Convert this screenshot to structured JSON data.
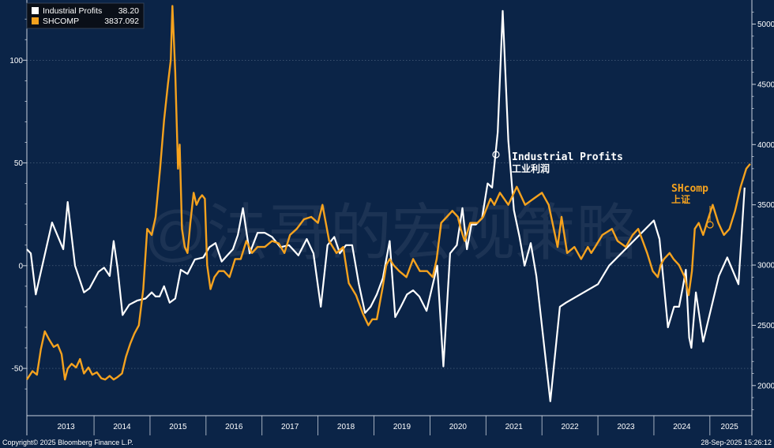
{
  "colors": {
    "background": "#0b2447",
    "industrial": "#ffffff",
    "shcomp": "#f5a21e",
    "axis": "#c9d1dc",
    "legend_bg": "#0a0f18",
    "footer_text": "#ffffff"
  },
  "legend": {
    "items": [
      {
        "name": "Industrial Profits",
        "value": "38.20",
        "color": "#ffffff"
      },
      {
        "name": "SHCOMP",
        "value": "3837.092",
        "color": "#f5a21e"
      }
    ]
  },
  "annotations": {
    "industrial_label": "Industrial Profits",
    "industrial_label_cn": "工业利润",
    "shcomp_label": "SHcomp",
    "shcomp_label_cn": "上证"
  },
  "watermark": "@法哥的宏观策略",
  "footer": {
    "copyright": "Copyright© 2025 Bloomberg Finance L.P.",
    "timestamp": "28-Sep-2025 15:26:12"
  },
  "chart_data": {
    "type": "line",
    "x_range": [
      2012.8,
      2025.75
    ],
    "x_ticks": [
      "2013",
      "2014",
      "2015",
      "2016",
      "2017",
      "2018",
      "2019",
      "2020",
      "2021",
      "2022",
      "2023",
      "2024",
      "2025"
    ],
    "left_axis": {
      "ticks": [
        -50,
        0,
        50,
        100
      ],
      "range": [
        -73,
        129.3
      ]
    },
    "right_axis": {
      "ticks": [
        2000,
        2500,
        3000,
        3500,
        4000,
        4500,
        5000
      ],
      "range": [
        1750,
        5200
      ]
    },
    "series": [
      {
        "name": "Industrial Profits",
        "axis": "left",
        "last_value": 38.2,
        "x": [
          2012.8,
          2012.87,
          2012.96,
          2013.25,
          2013.45,
          2013.53,
          2013.66,
          2013.82,
          2013.92,
          2014.08,
          2014.18,
          2014.28,
          2014.35,
          2014.42,
          2014.51,
          2014.63,
          2014.77,
          2014.92,
          2015.03,
          2015.1,
          2015.17,
          2015.25,
          2015.35,
          2015.45,
          2015.55,
          2015.67,
          2015.8,
          2015.95,
          2016.06,
          2016.17,
          2016.28,
          2016.38,
          2016.48,
          2016.57,
          2016.66,
          2016.78,
          2016.92,
          2017.05,
          2017.18,
          2017.33,
          2017.48,
          2017.55,
          2017.65,
          2017.8,
          2017.92,
          2018.05,
          2018.17,
          2018.29,
          2018.39,
          2018.5,
          2018.61,
          2018.73,
          2018.84,
          2018.94,
          2019.05,
          2019.16,
          2019.28,
          2019.38,
          2019.48,
          2019.59,
          2019.7,
          2019.81,
          2019.94,
          2020.13,
          2020.24,
          2020.36,
          2020.48,
          2020.58,
          2020.66,
          2020.74,
          2020.82,
          2020.93,
          2021.03,
          2021.11,
          2021.21,
          2021.3,
          2021.4,
          2021.5,
          2021.6,
          2021.69,
          2021.8,
          2021.9,
          2022.15,
          2022.32,
          2022.43,
          2023.0,
          2023.2,
          2024.0,
          2024.1,
          2024.25,
          2024.36,
          2024.45,
          2024.52,
          2024.57,
          2024.63,
          2024.67,
          2024.75,
          2024.88,
          2025.16,
          2025.31,
          2025.51,
          2025.62
        ],
        "y": [
          8,
          6,
          -14,
          21,
          8,
          31,
          0,
          -13,
          -11,
          -3,
          -1,
          -5,
          12,
          -1,
          -24,
          -19,
          -17,
          -16,
          -13,
          -15,
          -15,
          -10,
          -18,
          -16,
          -2,
          -4,
          3,
          4,
          9,
          11,
          2,
          5,
          8,
          15,
          28,
          6,
          16,
          16,
          14,
          9,
          10,
          8,
          5,
          13,
          6,
          -20,
          10,
          14,
          6,
          10,
          10,
          -9,
          -23,
          -20,
          -14,
          -6,
          12,
          -25,
          -20,
          -14,
          -12,
          -15,
          -22,
          0,
          -49,
          6,
          10,
          28,
          8,
          20,
          20,
          23,
          40,
          38,
          65,
          124,
          61,
          27,
          14,
          0,
          11,
          -5,
          -66,
          -20,
          -18,
          -9,
          0,
          22,
          13,
          -30,
          -20,
          -20,
          -10,
          -2,
          -35,
          -40,
          -13,
          -37,
          -5,
          4,
          -9,
          38
        ]
      },
      {
        "name": "SHCOMP",
        "axis": "right",
        "last_value": 3837.092,
        "x": [
          2012.8,
          2012.9,
          2012.98,
          2013.05,
          2013.12,
          2013.2,
          2013.28,
          2013.35,
          2013.42,
          2013.48,
          2013.53,
          2013.6,
          2013.68,
          2013.75,
          2013.82,
          2013.9,
          2013.97,
          2014.05,
          2014.13,
          2014.2,
          2014.28,
          2014.35,
          2014.42,
          2014.5,
          2014.57,
          2014.65,
          2014.72,
          2014.8,
          2014.88,
          2014.95,
          2015.03,
          2015.1,
          2015.18,
          2015.25,
          2015.32,
          2015.37,
          2015.4,
          2015.45,
          2015.5,
          2015.53,
          2015.57,
          2015.62,
          2015.67,
          2015.72,
          2015.78,
          2015.83,
          2015.88,
          2015.93,
          2015.98,
          2016.02,
          2016.08,
          2016.15,
          2016.23,
          2016.32,
          2016.42,
          2016.52,
          2016.62,
          2016.72,
          2016.82,
          2016.92,
          2017.05,
          2017.18,
          2017.3,
          2017.4,
          2017.5,
          2017.62,
          2017.75,
          2017.88,
          2018.0,
          2018.08,
          2018.2,
          2018.33,
          2018.45,
          2018.55,
          2018.68,
          2018.8,
          2018.9,
          2018.97,
          2019.05,
          2019.15,
          2019.22,
          2019.28,
          2019.35,
          2019.45,
          2019.58,
          2019.7,
          2019.82,
          2019.95,
          2020.05,
          2020.12,
          2020.2,
          2020.3,
          2020.4,
          2020.5,
          2020.55,
          2020.62,
          2020.72,
          2020.85,
          2020.95,
          2021.08,
          2021.15,
          2021.25,
          2021.4,
          2021.55,
          2021.7,
          2021.85,
          2022.0,
          2022.12,
          2022.28,
          2022.35,
          2022.45,
          2022.58,
          2022.7,
          2022.82,
          2022.88,
          2022.95,
          2023.08,
          2023.25,
          2023.35,
          2023.5,
          2023.62,
          2023.72,
          2023.8,
          2023.88,
          2023.98,
          2024.07,
          2024.12,
          2024.18,
          2024.28,
          2024.35,
          2024.45,
          2024.55,
          2024.62,
          2024.68,
          2024.73,
          2024.8,
          2024.88,
          2024.98,
          2025.05,
          2025.15,
          2025.25,
          2025.35,
          2025.45,
          2025.55,
          2025.65,
          2025.72
        ],
        "y": [
          2050,
          2120,
          2090,
          2300,
          2450,
          2380,
          2320,
          2340,
          2260,
          2050,
          2140,
          2180,
          2150,
          2220,
          2100,
          2150,
          2090,
          2110,
          2060,
          2050,
          2080,
          2050,
          2070,
          2100,
          2240,
          2350,
          2430,
          2500,
          2800,
          3300,
          3250,
          3400,
          3800,
          4200,
          4500,
          4700,
          5150,
          4600,
          3800,
          4000,
          3300,
          3150,
          3100,
          3350,
          3600,
          3500,
          3550,
          3580,
          3550,
          3000,
          2800,
          2900,
          2950,
          2950,
          2900,
          3050,
          3050,
          3200,
          3100,
          3150,
          3150,
          3200,
          3180,
          3100,
          3250,
          3300,
          3380,
          3400,
          3350,
          3500,
          3200,
          3100,
          3150,
          2850,
          2750,
          2600,
          2500,
          2550,
          2550,
          2800,
          3000,
          3050,
          3000,
          2950,
          2900,
          3050,
          2950,
          2950,
          2900,
          3050,
          3350,
          3400,
          3450,
          3400,
          3300,
          3200,
          3350,
          3350,
          3400,
          3550,
          3500,
          3600,
          3500,
          3650,
          3500,
          3550,
          3600,
          3500,
          3150,
          3400,
          3100,
          3150,
          3050,
          3150,
          3100,
          3150,
          3250,
          3300,
          3200,
          3150,
          3250,
          3300,
          3200,
          3100,
          2950,
          2900,
          3000,
          3050,
          3100,
          3050,
          3000,
          2900,
          2750,
          2950,
          3300,
          3350,
          3250,
          3400,
          3500,
          3350,
          3250,
          3300,
          3450,
          3650,
          3800,
          3840
        ]
      }
    ]
  }
}
